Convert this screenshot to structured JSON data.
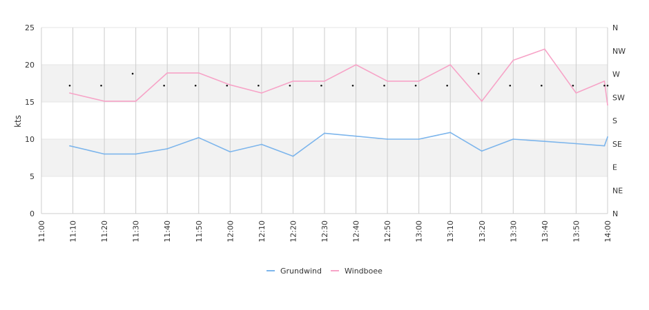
{
  "chart_data": {
    "type": "line",
    "ylabel": "kts",
    "ylim": [
      0,
      25
    ],
    "y_ticks": [
      "0",
      "5",
      "10",
      "15",
      "20",
      "25"
    ],
    "x_ticks": [
      "11:00",
      "11:10",
      "11:20",
      "11:30",
      "11:40",
      "11:50",
      "12:00",
      "12:10",
      "12:20",
      "12:30",
      "12:40",
      "12:50",
      "13:00",
      "13:10",
      "13:20",
      "13:30",
      "13:40",
      "13:50",
      "14:00"
    ],
    "x_range_minutes": [
      0,
      180
    ],
    "right_axis_labels": [
      "N",
      "NW",
      "W",
      "SW",
      "S",
      "SE",
      "E",
      "NE",
      "N"
    ],
    "bands": [
      [
        5,
        10
      ],
      [
        15,
        20
      ]
    ],
    "series": [
      {
        "name": "Grundwind",
        "color": "#7cb5ec",
        "x_minutes": [
          9,
          20,
          30,
          40,
          50,
          60,
          70,
          80,
          90,
          100,
          110,
          120,
          130,
          140,
          150,
          160,
          170,
          179,
          180
        ],
        "values": [
          9.1,
          8.0,
          8.0,
          8.7,
          10.2,
          8.3,
          9.3,
          7.7,
          10.8,
          10.4,
          10.0,
          10.0,
          10.9,
          8.4,
          10.0,
          9.7,
          9.4,
          9.1,
          10.3
        ]
      },
      {
        "name": "Windboee",
        "color": "#f7a3c7",
        "x_minutes": [
          9,
          20,
          30,
          40,
          50,
          60,
          70,
          80,
          90,
          100,
          110,
          120,
          130,
          140,
          150,
          160,
          170,
          179,
          180
        ],
        "values": [
          16.2,
          15.1,
          15.1,
          18.9,
          18.9,
          17.3,
          16.2,
          17.8,
          17.8,
          20.0,
          17.8,
          17.8,
          20.0,
          15.1,
          20.6,
          22.1,
          16.2,
          17.8,
          14.6
        ]
      }
    ],
    "direction_markers": {
      "x_minutes": [
        9,
        19,
        29,
        39,
        49,
        59,
        69,
        79,
        89,
        99,
        109,
        119,
        129,
        139,
        149,
        159,
        169,
        179,
        180
      ],
      "y_values": [
        17.2,
        17.2,
        18.8,
        17.2,
        17.2,
        17.2,
        17.2,
        17.2,
        17.2,
        17.2,
        17.2,
        17.2,
        17.2,
        18.8,
        17.2,
        17.2,
        17.2,
        17.2,
        17.2
      ]
    }
  }
}
